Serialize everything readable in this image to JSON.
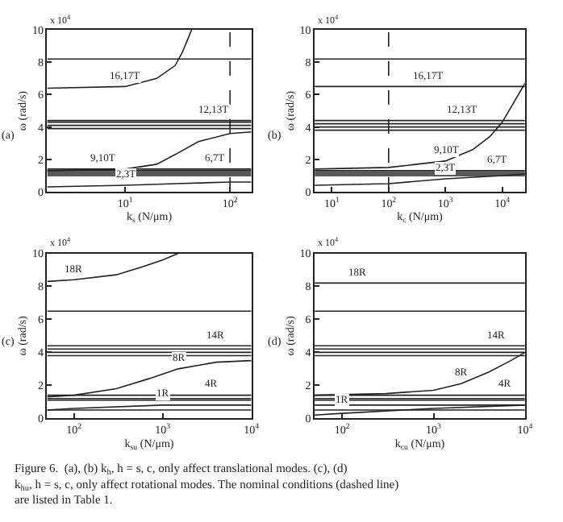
{
  "chart_data": [
    {
      "type": "line",
      "xlabel": "k$_{s}$ (N/μm)",
      "ylabel": "ω (rad/s)",
      "log": "x",
      "marker": "none",
      "line_style": "solid",
      "xlim": [
        1.8,
        160
      ],
      "ylim": [
        0,
        10
      ],
      "xticks": [
        {
          "value": 10,
          "label": "10$^{1}$"
        },
        {
          "value": 100,
          "label": "10$^{2}$"
        }
      ],
      "yticks": [
        0,
        2,
        4,
        6,
        8,
        10
      ],
      "series": [
        {
          "color": "#222222",
          "x": [
            1.8,
            160
          ],
          "values": [
            8.2,
            8.2
          ]
        },
        {
          "color": "#222222",
          "x": [
            1.8,
            10,
            20,
            30,
            35,
            40,
            43
          ],
          "values": [
            6.4,
            6.5,
            7.0,
            7.8,
            8.6,
            9.5,
            10
          ]
        },
        {
          "color": "#222222",
          "x": [
            1.8,
            160
          ],
          "values": [
            4.4,
            4.4
          ]
        },
        {
          "color": "#222222",
          "x": [
            1.8,
            160
          ],
          "values": [
            4.3,
            4.3
          ]
        },
        {
          "color": "#222222",
          "x": [
            1.8,
            160
          ],
          "values": [
            4.1,
            4.1
          ]
        },
        {
          "color": "#222222",
          "x": [
            1.8,
            160
          ],
          "values": [
            3.9,
            3.9
          ]
        },
        {
          "color": "#222222",
          "x": [
            1.8,
            10,
            20,
            30,
            50,
            100,
            160
          ],
          "values": [
            1.3,
            1.4,
            1.7,
            2.3,
            3.1,
            3.6,
            3.7
          ]
        },
        {
          "color": "#222222",
          "x": [
            1.8,
            160
          ],
          "values": [
            1.4,
            1.4
          ]
        },
        {
          "color": "#222222",
          "x": [
            1.8,
            160
          ],
          "values": [
            1.3,
            1.3
          ]
        },
        {
          "color": "#222222",
          "x": [
            1.8,
            160
          ],
          "values": [
            1.2,
            1.2
          ]
        },
        {
          "color": "#222222",
          "x": [
            1.8,
            160
          ],
          "values": [
            1.1,
            1.1
          ]
        },
        {
          "color": "#222222",
          "x": [
            1.8,
            160
          ],
          "values": [
            1.0,
            1.0
          ]
        },
        {
          "color": "#222222",
          "x": [
            1.8,
            10,
            30,
            100,
            160
          ],
          "values": [
            0.3,
            0.4,
            0.5,
            0.6,
            0.6
          ]
        }
      ],
      "ref_lines": [
        {
          "axis": "x",
          "value": 100,
          "line_style": "dashed",
          "color": "#222222"
        }
      ],
      "annotations": [
        {
          "text": "16,17T",
          "x": 10,
          "y": 6.5
        },
        {
          "text": "12,13T",
          "x": 70,
          "y": 4.4
        },
        {
          "text": "9,10T",
          "x": 6,
          "y": 1.4
        },
        {
          "text": "6,7T",
          "x": 70,
          "y": 1.4
        },
        {
          "text": "2,3T",
          "x": 10,
          "y": 0.4
        },
        "(a)",
        "x 10$^{4}$"
      ]
    },
    {
      "type": "line",
      "xlabel": "k$_{c}$ (N/μm)",
      "ylabel": "ω (rad/s)",
      "log": "x",
      "marker": "none",
      "line_style": "solid",
      "xlim": [
        5,
        25000
      ],
      "ylim": [
        0,
        10
      ],
      "xticks": [
        {
          "value": 10,
          "label": "10$^{1}$"
        },
        {
          "value": 100,
          "label": "10$^{2}$"
        },
        {
          "value": 1000,
          "label": "10$^{3}$"
        },
        {
          "value": 10000,
          "label": "10$^{4}$"
        }
      ],
      "yticks": [
        0,
        2,
        4,
        6,
        8,
        10
      ],
      "series": [
        {
          "color": "#222222",
          "x": [
            5,
            25000
          ],
          "values": [
            8.2,
            8.2
          ]
        },
        {
          "color": "#222222",
          "x": [
            5,
            25000
          ],
          "values": [
            6.5,
            6.5
          ]
        },
        {
          "color": "#222222",
          "x": [
            5,
            25000
          ],
          "values": [
            4.4,
            4.4
          ]
        },
        {
          "color": "#222222",
          "x": [
            5,
            25000
          ],
          "values": [
            4.2,
            4.2
          ]
        },
        {
          "color": "#222222",
          "x": [
            5,
            25000
          ],
          "values": [
            4.0,
            4.0
          ]
        },
        {
          "color": "#222222",
          "x": [
            5,
            25000
          ],
          "values": [
            3.8,
            3.8
          ]
        },
        {
          "color": "#222222",
          "x": [
            5,
            100,
            1000,
            3000,
            6000,
            10000,
            25000
          ],
          "values": [
            1.4,
            1.5,
            1.9,
            2.6,
            3.4,
            4.3,
            6.7
          ]
        },
        {
          "color": "#222222",
          "x": [
            5,
            25000
          ],
          "values": [
            1.3,
            1.3
          ]
        },
        {
          "color": "#222222",
          "x": [
            5,
            25000
          ],
          "values": [
            1.2,
            1.2
          ]
        },
        {
          "color": "#222222",
          "x": [
            5,
            25000
          ],
          "values": [
            1.1,
            1.1
          ]
        },
        {
          "color": "#222222",
          "x": [
            5,
            25000
          ],
          "values": [
            1.0,
            1.0
          ]
        },
        {
          "color": "#222222",
          "x": [
            5,
            100,
            1000,
            10000,
            25000
          ],
          "values": [
            0.4,
            0.5,
            0.8,
            1.0,
            1.1
          ]
        }
      ],
      "ref_lines": [
        {
          "axis": "x",
          "value": 100,
          "line_style": "dashed",
          "color": "#222222"
        }
      ],
      "annotations": [
        {
          "text": "16,17T",
          "x": 500,
          "y": 6.5
        },
        {
          "text": "12,13T",
          "x": 2000,
          "y": 4.4
        },
        {
          "text": "9,10T",
          "x": 1000,
          "y": 1.9
        },
        {
          "text": "6,7T",
          "x": 8000,
          "y": 1.3
        },
        {
          "text": "2,3T",
          "x": 1000,
          "y": 0.8
        },
        "(b)",
        "x 10$^{4}$"
      ]
    },
    {
      "type": "line",
      "xlabel": "k$_{su}$ (N/μm)",
      "ylabel": "ω (rad/s)",
      "log": "x",
      "marker": "none",
      "line_style": "solid",
      "xlim": [
        50,
        10000
      ],
      "ylim": [
        0,
        10
      ],
      "xticks": [
        {
          "value": 100,
          "label": "10$^{2}$"
        },
        {
          "value": 1000,
          "label": "10$^{3}$"
        },
        {
          "value": 10000,
          "label": "10$^{4}$"
        }
      ],
      "yticks": [
        0,
        2,
        4,
        6,
        8,
        10
      ],
      "series": [
        {
          "color": "#222222",
          "x": [
            50,
            100,
            300,
            600,
            1000,
            1500
          ],
          "values": [
            8.3,
            8.4,
            8.7,
            9.2,
            9.6,
            10
          ]
        },
        {
          "color": "#222222",
          "x": [
            50,
            10000
          ],
          "values": [
            6.5,
            6.5
          ]
        },
        {
          "color": "#222222",
          "x": [
            50,
            10000
          ],
          "values": [
            4.4,
            4.4
          ]
        },
        {
          "color": "#222222",
          "x": [
            50,
            10000
          ],
          "values": [
            4.2,
            4.2
          ]
        },
        {
          "color": "#222222",
          "x": [
            50,
            10000
          ],
          "values": [
            4.0,
            4.0
          ]
        },
        {
          "color": "#222222",
          "x": [
            50,
            10000
          ],
          "values": [
            3.8,
            3.8
          ]
        },
        {
          "color": "#222222",
          "x": [
            50,
            100,
            300,
            700,
            1500,
            4000,
            10000
          ],
          "values": [
            1.3,
            1.4,
            1.8,
            2.4,
            3.0,
            3.4,
            3.5
          ]
        },
        {
          "color": "#222222",
          "x": [
            50,
            10000
          ],
          "values": [
            1.4,
            1.4
          ]
        },
        {
          "color": "#222222",
          "x": [
            50,
            10000
          ],
          "values": [
            1.2,
            1.2
          ]
        },
        {
          "color": "#222222",
          "x": [
            50,
            10000
          ],
          "values": [
            1.1,
            1.1
          ]
        },
        {
          "color": "#222222",
          "x": [
            50,
            100,
            1000,
            10000
          ],
          "values": [
            0.5,
            0.6,
            0.8,
            0.8
          ]
        },
        {
          "color": "#222222",
          "x": [
            50,
            10000
          ],
          "values": [
            0.5,
            0.5
          ]
        }
      ],
      "annotations": [
        {
          "text": "18R",
          "x": 100,
          "y": 8.4
        },
        {
          "text": "14R",
          "x": 4000,
          "y": 4.4
        },
        {
          "text": "8R",
          "x": 1500,
          "y": 3.0
        },
        {
          "text": "4R",
          "x": 3500,
          "y": 1.4
        },
        {
          "text": "1R",
          "x": 1000,
          "y": 0.8
        },
        "(c)",
        "x 10$^{4}$",
        "Figure 6.  (a), (b) k$_{h}$, h = s, c, only affect translational modes. (c), (d) k$_{hu}$, h = s, c, only affect rotational modes. The nominal conditions (dashed line) are listed in Table 1."
      ]
    },
    {
      "type": "line",
      "xlabel": "k$_{cu}$ (N/μm)",
      "ylabel": "ω (rad/s)",
      "log": "x",
      "marker": "none",
      "line_style": "solid",
      "xlim": [
        50,
        10000
      ],
      "ylim": [
        0,
        10
      ],
      "xticks": [
        {
          "value": 100,
          "label": "10$^{2}$"
        },
        {
          "value": 1000,
          "label": "10$^{3}$"
        },
        {
          "value": 10000,
          "label": "10$^{4}$"
        }
      ],
      "yticks": [
        0,
        2,
        4,
        6,
        8,
        10
      ],
      "series": [
        {
          "color": "#222222",
          "x": [
            50,
            10000
          ],
          "values": [
            8.2,
            8.2
          ]
        },
        {
          "color": "#222222",
          "x": [
            50,
            10000
          ],
          "values": [
            6.5,
            6.5
          ]
        },
        {
          "color": "#222222",
          "x": [
            50,
            10000
          ],
          "values": [
            4.4,
            4.4
          ]
        },
        {
          "color": "#222222",
          "x": [
            50,
            10000
          ],
          "values": [
            4.2,
            4.2
          ]
        },
        {
          "color": "#222222",
          "x": [
            50,
            10000
          ],
          "values": [
            4.0,
            4.0
          ]
        },
        {
          "color": "#222222",
          "x": [
            50,
            10000
          ],
          "values": [
            3.8,
            3.8
          ]
        },
        {
          "color": "#222222",
          "x": [
            50,
            300,
            1000,
            2000,
            4000,
            7000,
            10000
          ],
          "values": [
            1.4,
            1.5,
            1.7,
            2.1,
            2.8,
            3.5,
            4.0
          ]
        },
        {
          "color": "#222222",
          "x": [
            50,
            10000
          ],
          "values": [
            1.4,
            1.4
          ]
        },
        {
          "color": "#222222",
          "x": [
            50,
            10000
          ],
          "values": [
            1.2,
            1.2
          ]
        },
        {
          "color": "#222222",
          "x": [
            50,
            10000
          ],
          "values": [
            1.1,
            1.1
          ]
        },
        {
          "color": "#222222",
          "x": [
            50,
            10000
          ],
          "values": [
            0.8,
            0.8
          ]
        },
        {
          "color": "#222222",
          "x": [
            50,
            10000
          ],
          "values": [
            0.5,
            0.5
          ]
        },
        {
          "color": "#222222",
          "x": [
            50,
            100,
            1000,
            10000
          ],
          "values": [
            0.2,
            0.3,
            0.6,
            0.8
          ]
        }
      ],
      "annotations": [
        {
          "text": "18R",
          "x": 150,
          "y": 8.2
        },
        {
          "text": "14R",
          "x": 5000,
          "y": 4.4
        },
        {
          "text": "8R",
          "x": 2000,
          "y": 2.1
        },
        {
          "text": "4R",
          "x": 6000,
          "y": 1.4
        },
        {
          "text": "1R",
          "x": 100,
          "y": 0.5
        },
        "(d)",
        "x 10$^{4}$"
      ]
    }
  ]
}
